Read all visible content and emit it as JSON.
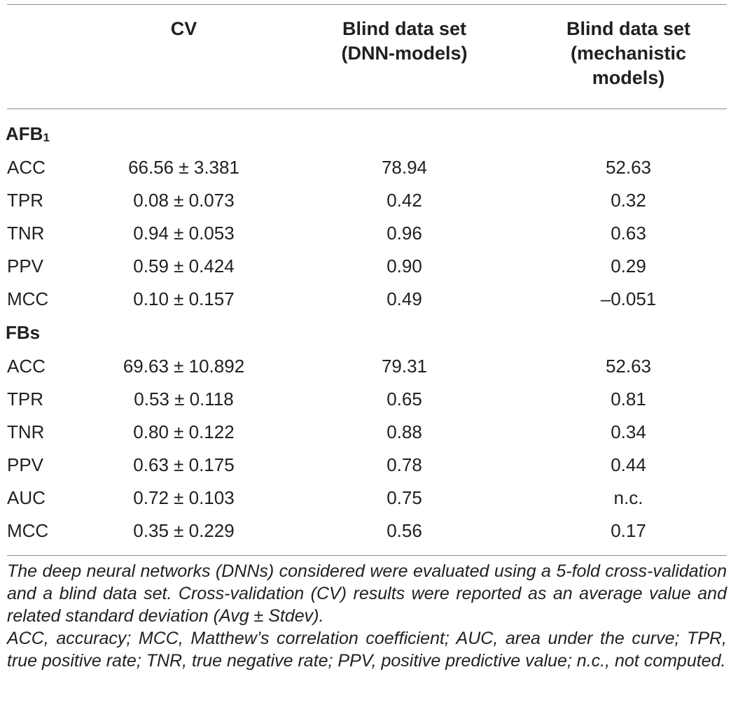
{
  "header": {
    "cv": "CV",
    "dnn_line1": "Blind data set",
    "dnn_line2": "(DNN-models)",
    "mech_line1": "Blind data set",
    "mech_line2": "(mechanistic",
    "mech_line3": "models)"
  },
  "sections": [
    {
      "name": "AFB",
      "subscript": "1",
      "rows": [
        {
          "metric": "ACC",
          "cv": "66.56 ± 3.381",
          "dnn": "78.94",
          "mech": "52.63"
        },
        {
          "metric": "TPR",
          "cv": "0.08 ± 0.073",
          "dnn": "0.42",
          "mech": "0.32"
        },
        {
          "metric": "TNR",
          "cv": "0.94 ± 0.053",
          "dnn": "0.96",
          "mech": "0.63"
        },
        {
          "metric": "PPV",
          "cv": "0.59 ± 0.424",
          "dnn": "0.90",
          "mech": "0.29"
        },
        {
          "metric": "MCC",
          "cv": "0.10 ± 0.157",
          "dnn": "0.49",
          "mech": "–0.051"
        }
      ]
    },
    {
      "name": "FBs",
      "subscript": "",
      "rows": [
        {
          "metric": "ACC",
          "cv": "69.63 ± 10.892",
          "dnn": "79.31",
          "mech": "52.63"
        },
        {
          "metric": "TPR",
          "cv": "0.53 ± 0.118",
          "dnn": "0.65",
          "mech": "0.81"
        },
        {
          "metric": "TNR",
          "cv": "0.80 ± 0.122",
          "dnn": "0.88",
          "mech": "0.34"
        },
        {
          "metric": "PPV",
          "cv": "0.63 ± 0.175",
          "dnn": "0.78",
          "mech": "0.44"
        },
        {
          "metric": "AUC",
          "cv": "0.72 ± 0.103",
          "dnn": "0.75",
          "mech": "n.c."
        },
        {
          "metric": "MCC",
          "cv": "0.35 ± 0.229",
          "dnn": "0.56",
          "mech": "0.17"
        }
      ]
    }
  ],
  "notes": {
    "note1": "The deep neural networks (DNNs) considered were evaluated using a 5-fold cross-validation and a blind data set. Cross-validation (CV) results were reported as an average value and related standard deviation (Avg ± Stdev).",
    "note2": "ACC, accuracy; MCC, Matthew’s correlation coefficient; AUC, area under the curve; TPR, true positive rate; TNR, true negative rate; PPV, positive predictive value; n.c., not computed."
  }
}
